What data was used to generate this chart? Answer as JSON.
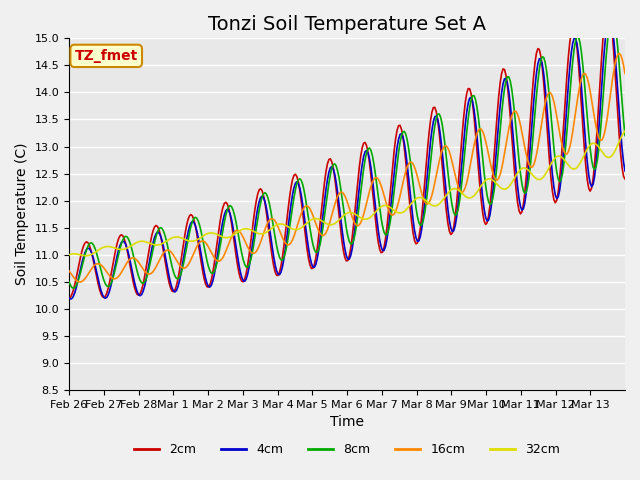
{
  "title": "Tonzi Soil Temperature Set A",
  "xlabel": "Time",
  "ylabel": "Soil Temperature (C)",
  "ylim": [
    8.5,
    15.0
  ],
  "xtick_labels": [
    "Feb 26",
    "Feb 27",
    "Feb 28",
    "Mar 1",
    "Mar 2",
    "Mar 3",
    "Mar 4",
    "Mar 5",
    "Mar 6",
    "Mar 7",
    "Mar 8",
    "Mar 9",
    "Mar 10",
    "Mar 11",
    "Mar 12",
    "Mar 13"
  ],
  "ytick_vals": [
    8.5,
    9.0,
    9.5,
    10.0,
    10.5,
    11.0,
    11.5,
    12.0,
    12.5,
    13.0,
    13.5,
    14.0,
    14.5,
    15.0
  ],
  "colors": {
    "2cm": "#cc0000",
    "4cm": "#0000cc",
    "8cm": "#00aa00",
    "16cm": "#ff8800",
    "32cm": "#dddd00"
  },
  "annotation_text": "TZ_fmet",
  "annotation_color": "#cc0000",
  "annotation_bg": "#ffffcc",
  "annotation_border": "#cc8800",
  "background_color": "#e8e8e8",
  "grid_color": "#ffffff",
  "title_fontsize": 14,
  "axis_label_fontsize": 10
}
